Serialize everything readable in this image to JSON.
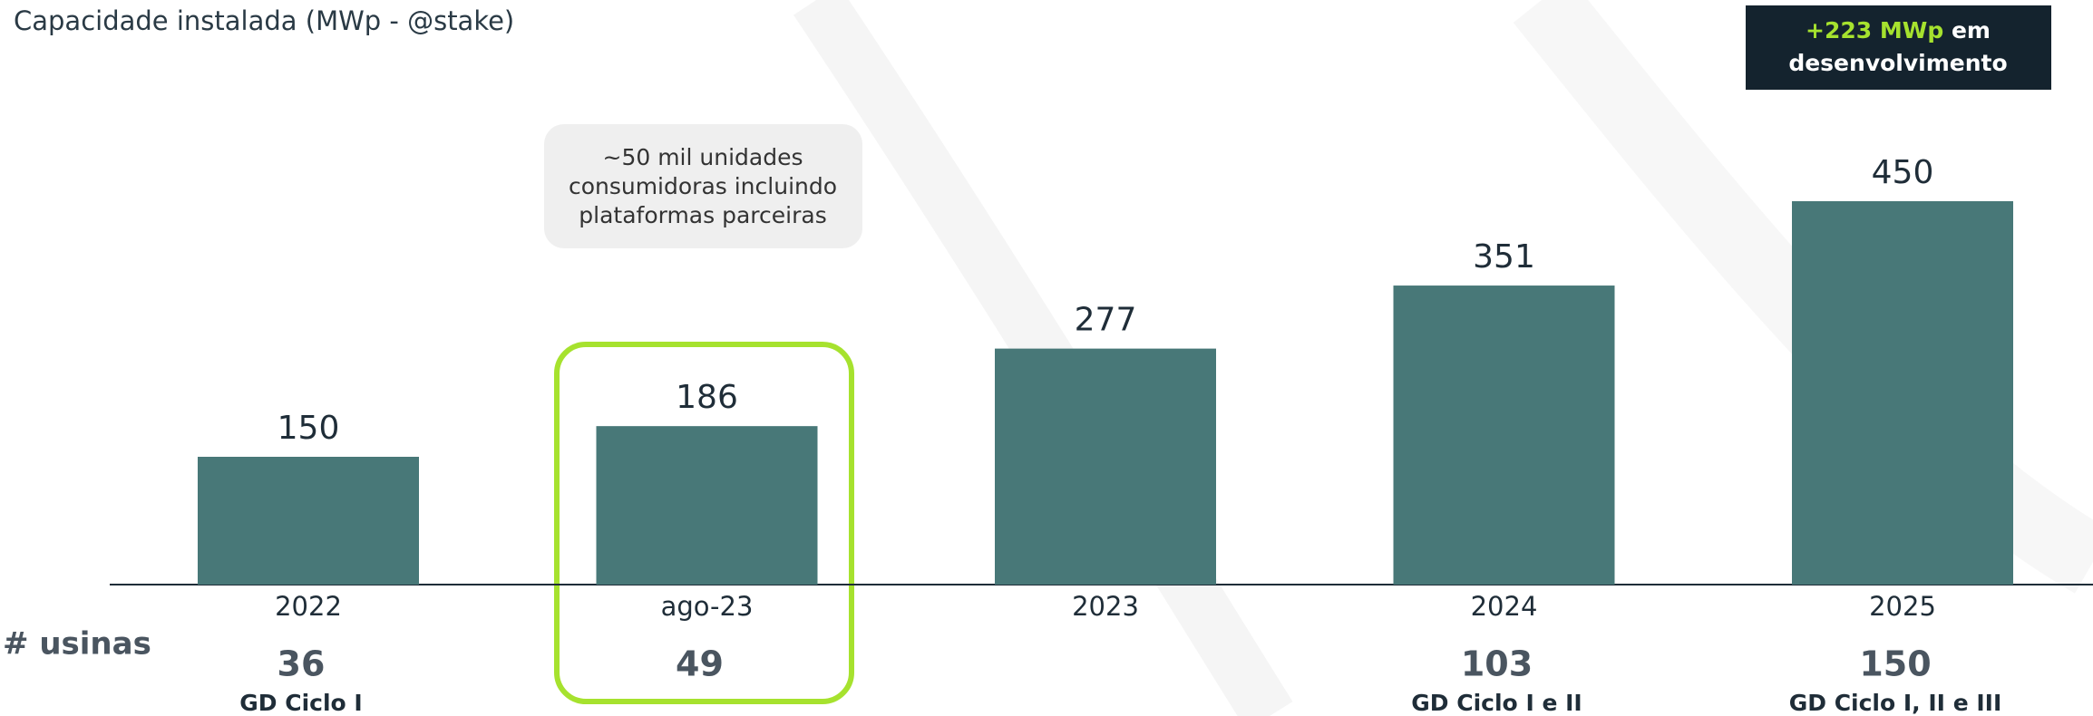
{
  "chart_data": {
    "type": "bar",
    "subtitle": "Capacidade instalada (MWp - @stake)",
    "categories": [
      "2022",
      "ago-23",
      "2023",
      "2024",
      "2025"
    ],
    "values": [
      150,
      186,
      277,
      351,
      450
    ],
    "color": "#487878",
    "highlight_box": {
      "highlight": "+223 MWp",
      "lines": [
        "em",
        "desenvolvimento"
      ]
    },
    "annotation": {
      "lines": [
        "~50 mil unidades",
        "consumidoras incluindo",
        "plataformas parceiras"
      ]
    },
    "plants": {
      "label": "# usinas",
      "values": [
        36,
        49,
        null,
        103,
        150
      ],
      "notes": [
        "GD Ciclo I",
        null,
        null,
        "GD Ciclo I e II",
        "GD Ciclo I, II e III"
      ]
    }
  }
}
